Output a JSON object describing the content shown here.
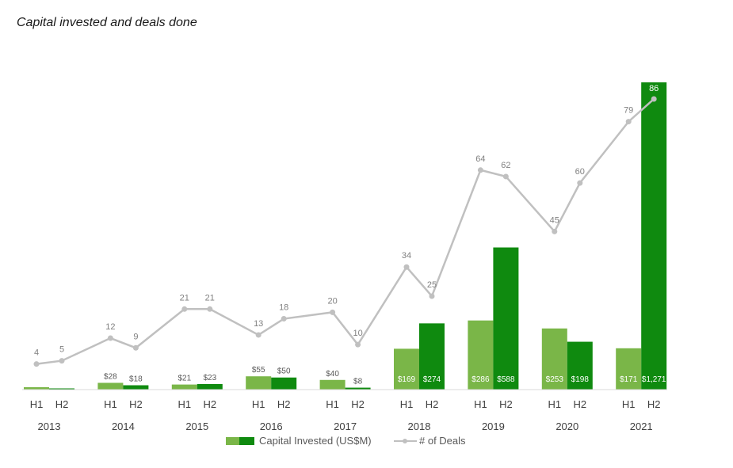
{
  "chart_data": {
    "type": "bar",
    "title": "Capital invested and deals done",
    "years": [
      "2013",
      "2014",
      "2015",
      "2016",
      "2017",
      "2018",
      "2019",
      "2020",
      "2021"
    ],
    "halves": [
      "H1",
      "H2"
    ],
    "series": [
      {
        "name": "Capital Invested (US$M)",
        "h1_values": [
          10,
          28,
          21,
          55,
          40,
          169,
          286,
          253,
          171
        ],
        "h2_values": [
          1,
          18,
          23,
          50,
          8,
          274,
          588,
          198,
          1271
        ],
        "h1_labels": [
          "",
          "$28",
          "$21",
          "$55",
          "$40",
          "$169",
          "$286",
          "$253",
          "$171"
        ],
        "h2_labels": [
          "",
          "$18",
          "$23",
          "$50",
          "$8",
          "$274",
          "$588",
          "$198",
          "$1,271"
        ]
      },
      {
        "name": "# of Deals",
        "type": "line",
        "values": [
          4,
          5,
          12,
          9,
          21,
          21,
          13,
          18,
          20,
          10,
          34,
          25,
          64,
          62,
          45,
          60,
          79,
          86
        ]
      }
    ],
    "bar_ylim": [
      0,
      1271
    ],
    "line_ylim": [
      0,
      86
    ],
    "legend_position": "bottom",
    "colors": {
      "h1": "#7ab648",
      "h2": "#0f8a0f",
      "line": "#c0c0c0",
      "label_on_bar": "#ffffff",
      "label": "#595959"
    }
  }
}
